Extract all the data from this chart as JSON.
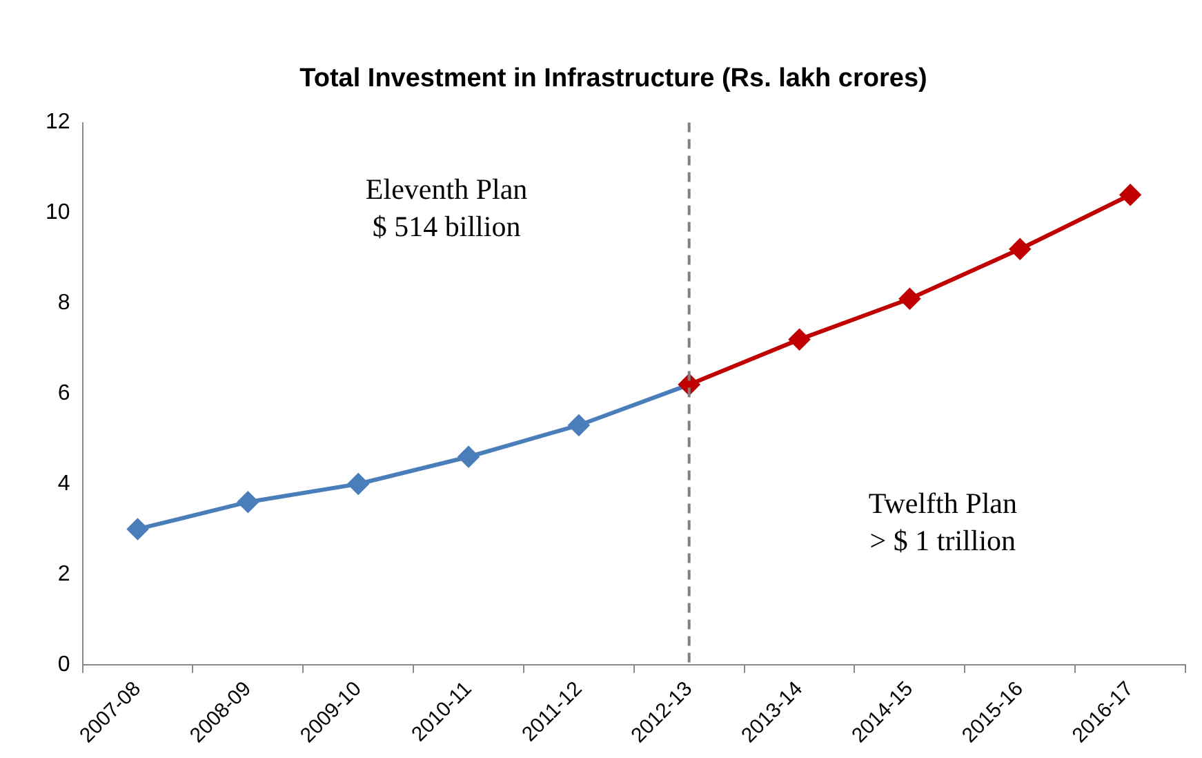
{
  "chart_data": {
    "type": "line",
    "title": "Total Investment in Infrastructure (Rs. lakh crores)",
    "categories": [
      "2007-08",
      "2008-09",
      "2009-10",
      "2010-11",
      "2011-12",
      "2012-13",
      "2013-14",
      "2014-15",
      "2015-16",
      "2016-17"
    ],
    "series": [
      {
        "color": "#4a7ebb",
        "values": [
          3.0,
          3.6,
          4.0,
          4.6,
          5.3,
          6.2,
          null,
          null,
          null,
          null
        ]
      },
      {
        "color": "#c00000",
        "values": [
          null,
          null,
          null,
          null,
          null,
          6.2,
          7.2,
          8.1,
          9.2,
          10.4
        ]
      }
    ],
    "ylim": [
      0,
      12
    ],
    "yticks": [
      0,
      2,
      4,
      6,
      8,
      10,
      12
    ],
    "marker": "diamond",
    "line_style": "solid",
    "grid": false,
    "legend": false,
    "ref_lines": [
      {
        "axis": "x",
        "value": "2012-13",
        "color": "#808080",
        "line_style": "dashed"
      }
    ],
    "annotations": [
      "Eleventh Plan\n$ 514 billion",
      "Twelfth Plan\n> $ 1 trillion"
    ]
  }
}
